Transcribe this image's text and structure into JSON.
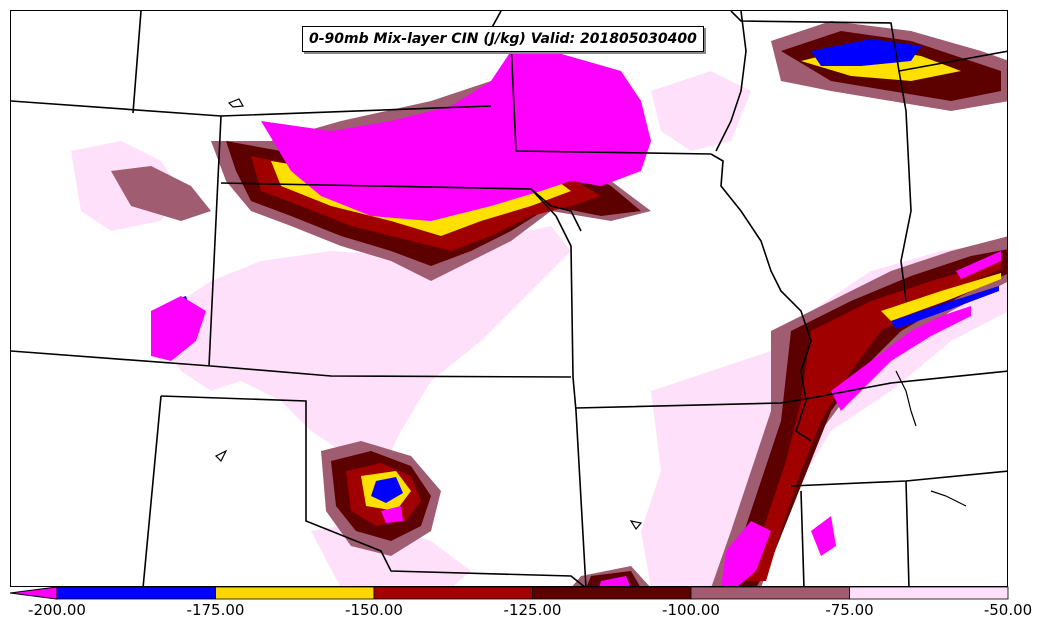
{
  "title": "0-90mb Mix-layer CIN (J/kg) Valid: 201805030400",
  "colorbar": {
    "levels": [
      "-200.00",
      "-175.00",
      "-150.00",
      "-125.00",
      "-100.00",
      "-75.00",
      "-50.00"
    ],
    "below_color": "#ff00ff",
    "colors": [
      "#0000ff",
      "#ffd700",
      "#a00000",
      "#5c0000",
      "#a05c70",
      "#ffe0fa"
    ]
  },
  "map": {
    "border_color": "#000000",
    "shading_colors": {
      "magenta": "#ff00ff",
      "blue": "#0000ff",
      "yellow": "#ffe000",
      "red": "#a00000",
      "darkred": "#5c0000",
      "mauve": "#a05c70",
      "pink": "#ffe0fa"
    }
  }
}
